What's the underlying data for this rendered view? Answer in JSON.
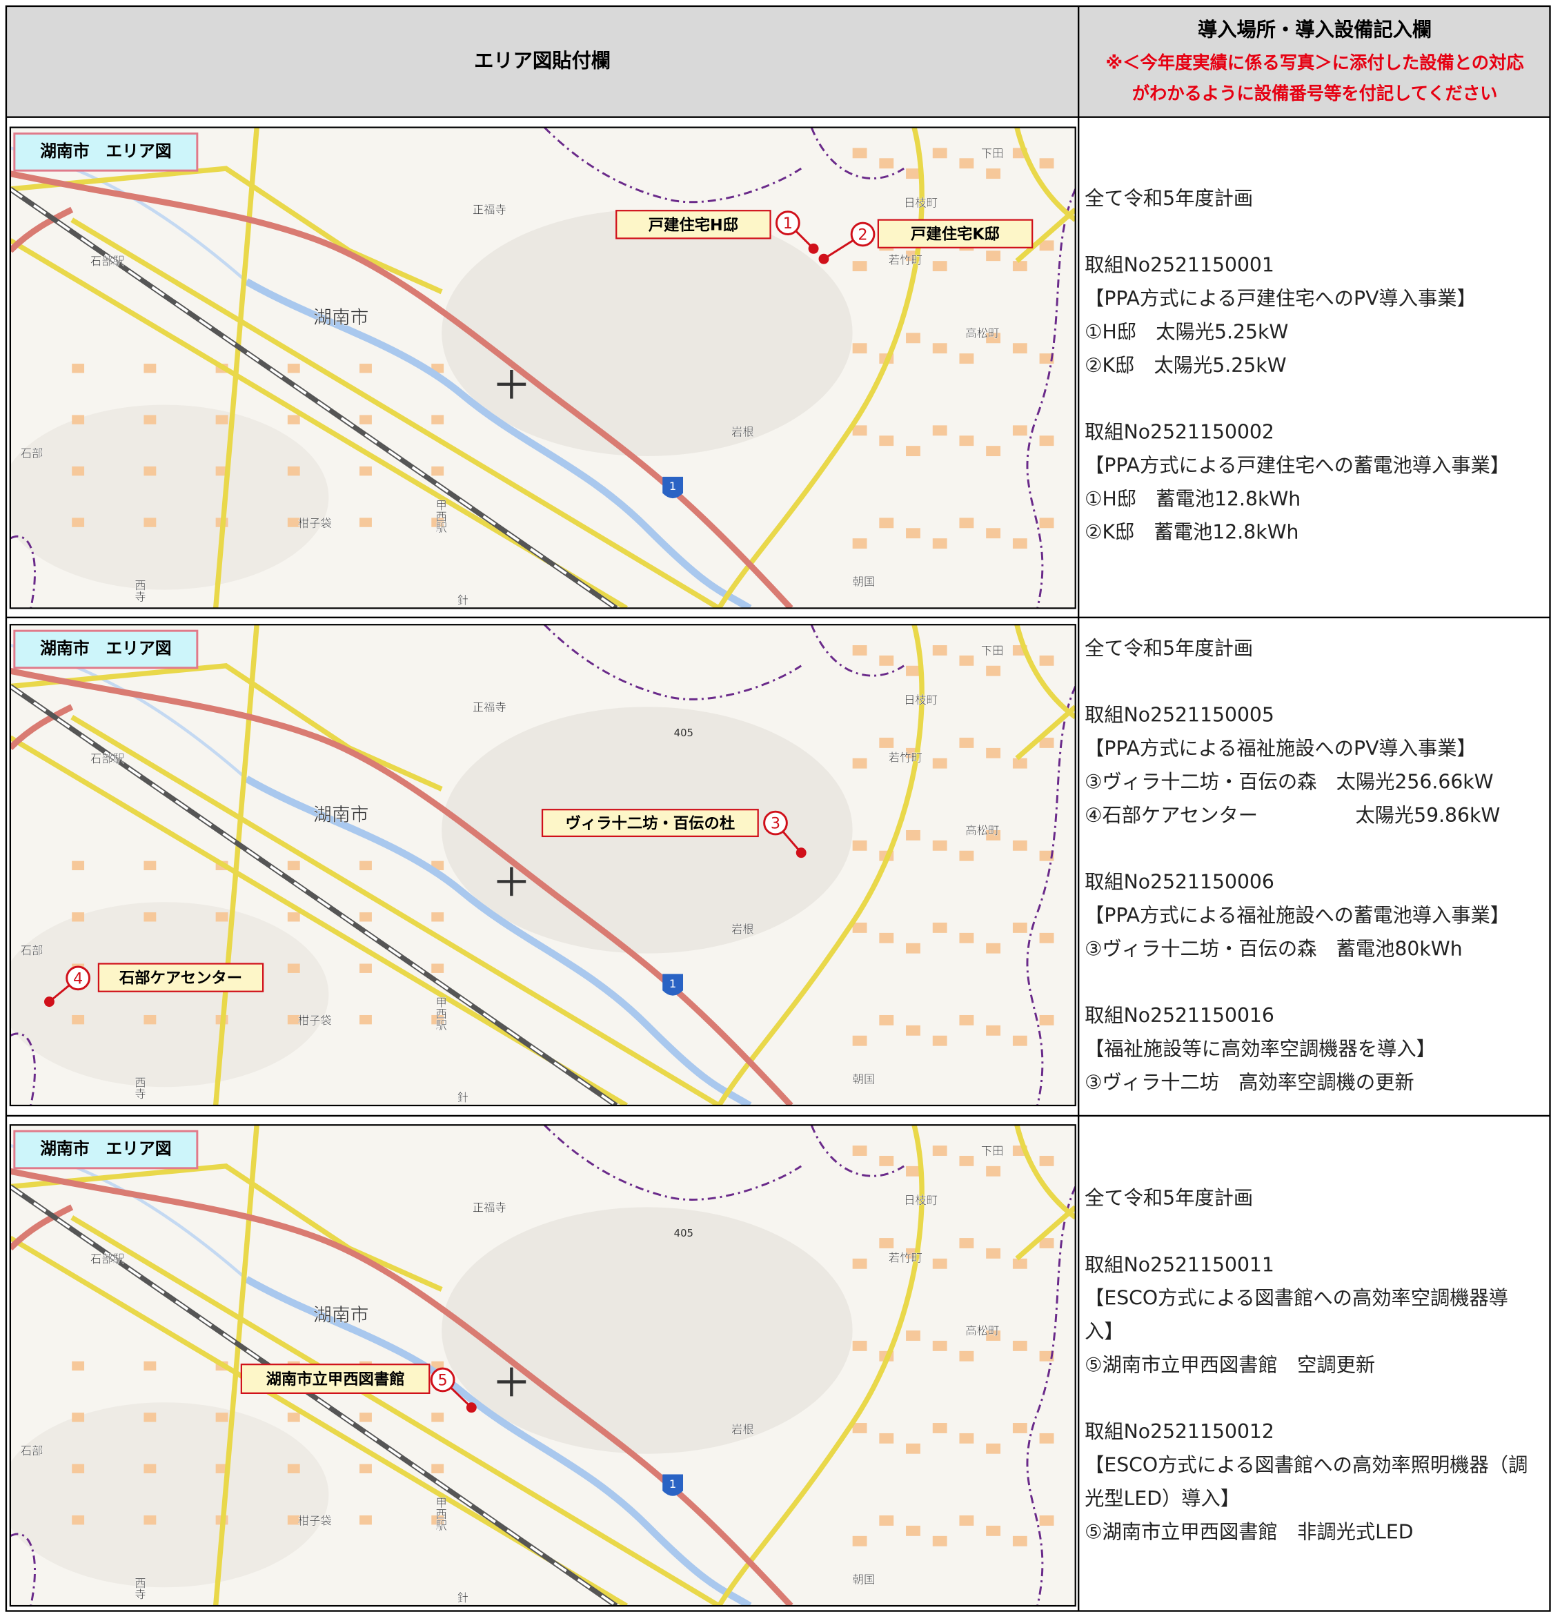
{
  "header": {
    "left_title": "エリア図貼付欄",
    "right_title": "導入場所・導入設備記入欄",
    "right_note_lines": [
      "※＜今年度実績に係る写真＞に添付した設備との対応",
      "がわかるように設備番号等を付記してください"
    ]
  },
  "base_map": {
    "labels": [
      "正福寺",
      "下田",
      "日枝町",
      "若竹町",
      "高松町",
      "湖南市",
      "石部駅",
      "岩根",
      "石部",
      "甲西駅",
      "柑子袋",
      "西寺",
      "針",
      "朝国"
    ],
    "route_number": "1"
  },
  "rows": [
    {
      "map": {
        "title": "湖南市　エリア図",
        "markers": [
          {
            "number": "1",
            "label": "戸建住宅H邸"
          },
          {
            "number": "2",
            "label": "戸建住宅K邸"
          }
        ]
      },
      "text_blocks": [
        [
          "全て令和5年度計画"
        ],
        [
          "取組No2521150001",
          "【PPA方式による戸建住宅へのPV導入事業】",
          "①H邸　太陽光5.25kW",
          "②K邸　太陽光5.25kW"
        ],
        [
          "取組No2521150002",
          "【PPA方式による戸建住宅への蓄電池導入事業】",
          "①H邸　蓄電池12.8kWh",
          "②K邸　蓄電池12.8kWh"
        ]
      ]
    },
    {
      "map": {
        "title": "湖南市　エリア図",
        "peak": "405",
        "markers": [
          {
            "number": "3",
            "label": "ヴィラ十二坊・百伝の杜"
          },
          {
            "number": "4",
            "label": "石部ケアセンター"
          }
        ]
      },
      "text_blocks": [
        [
          "全て令和5年度計画"
        ],
        [
          "取組No2521150005",
          "【PPA方式による福祉施設へのPV導入事業】",
          "③ヴィラ十二坊・百伝の森　太陽光256.66kW",
          "④石部ケアセンター　　　　　太陽光59.86kW"
        ],
        [
          "取組No2521150006",
          "【PPA方式による福祉施設への蓄電池導入事業】",
          "③ヴィラ十二坊・百伝の森　蓄電池80kWh"
        ],
        [
          "取組No2521150016",
          "【福祉施設等に高効率空調機器を導入】",
          "③ヴィラ十二坊　高効率空調機の更新"
        ]
      ]
    },
    {
      "map": {
        "title": "湖南市　エリア図",
        "peak": "405",
        "markers": [
          {
            "number": "5",
            "label": "湖南市立甲西図書館"
          }
        ]
      },
      "text_blocks": [
        [
          "全て令和5年度計画"
        ],
        [
          "取組No2521150011",
          "【ESCO方式による図書館への高効率空調機器導",
          "入】",
          "⑤湖南市立甲西図書館　空調更新"
        ],
        [
          "取組No2521150012",
          "【ESCO方式による図書館への高効率照明機器（調",
          "光型LED）導入】",
          "⑤湖南市立甲西図書館　非調光式LED"
        ]
      ]
    }
  ]
}
